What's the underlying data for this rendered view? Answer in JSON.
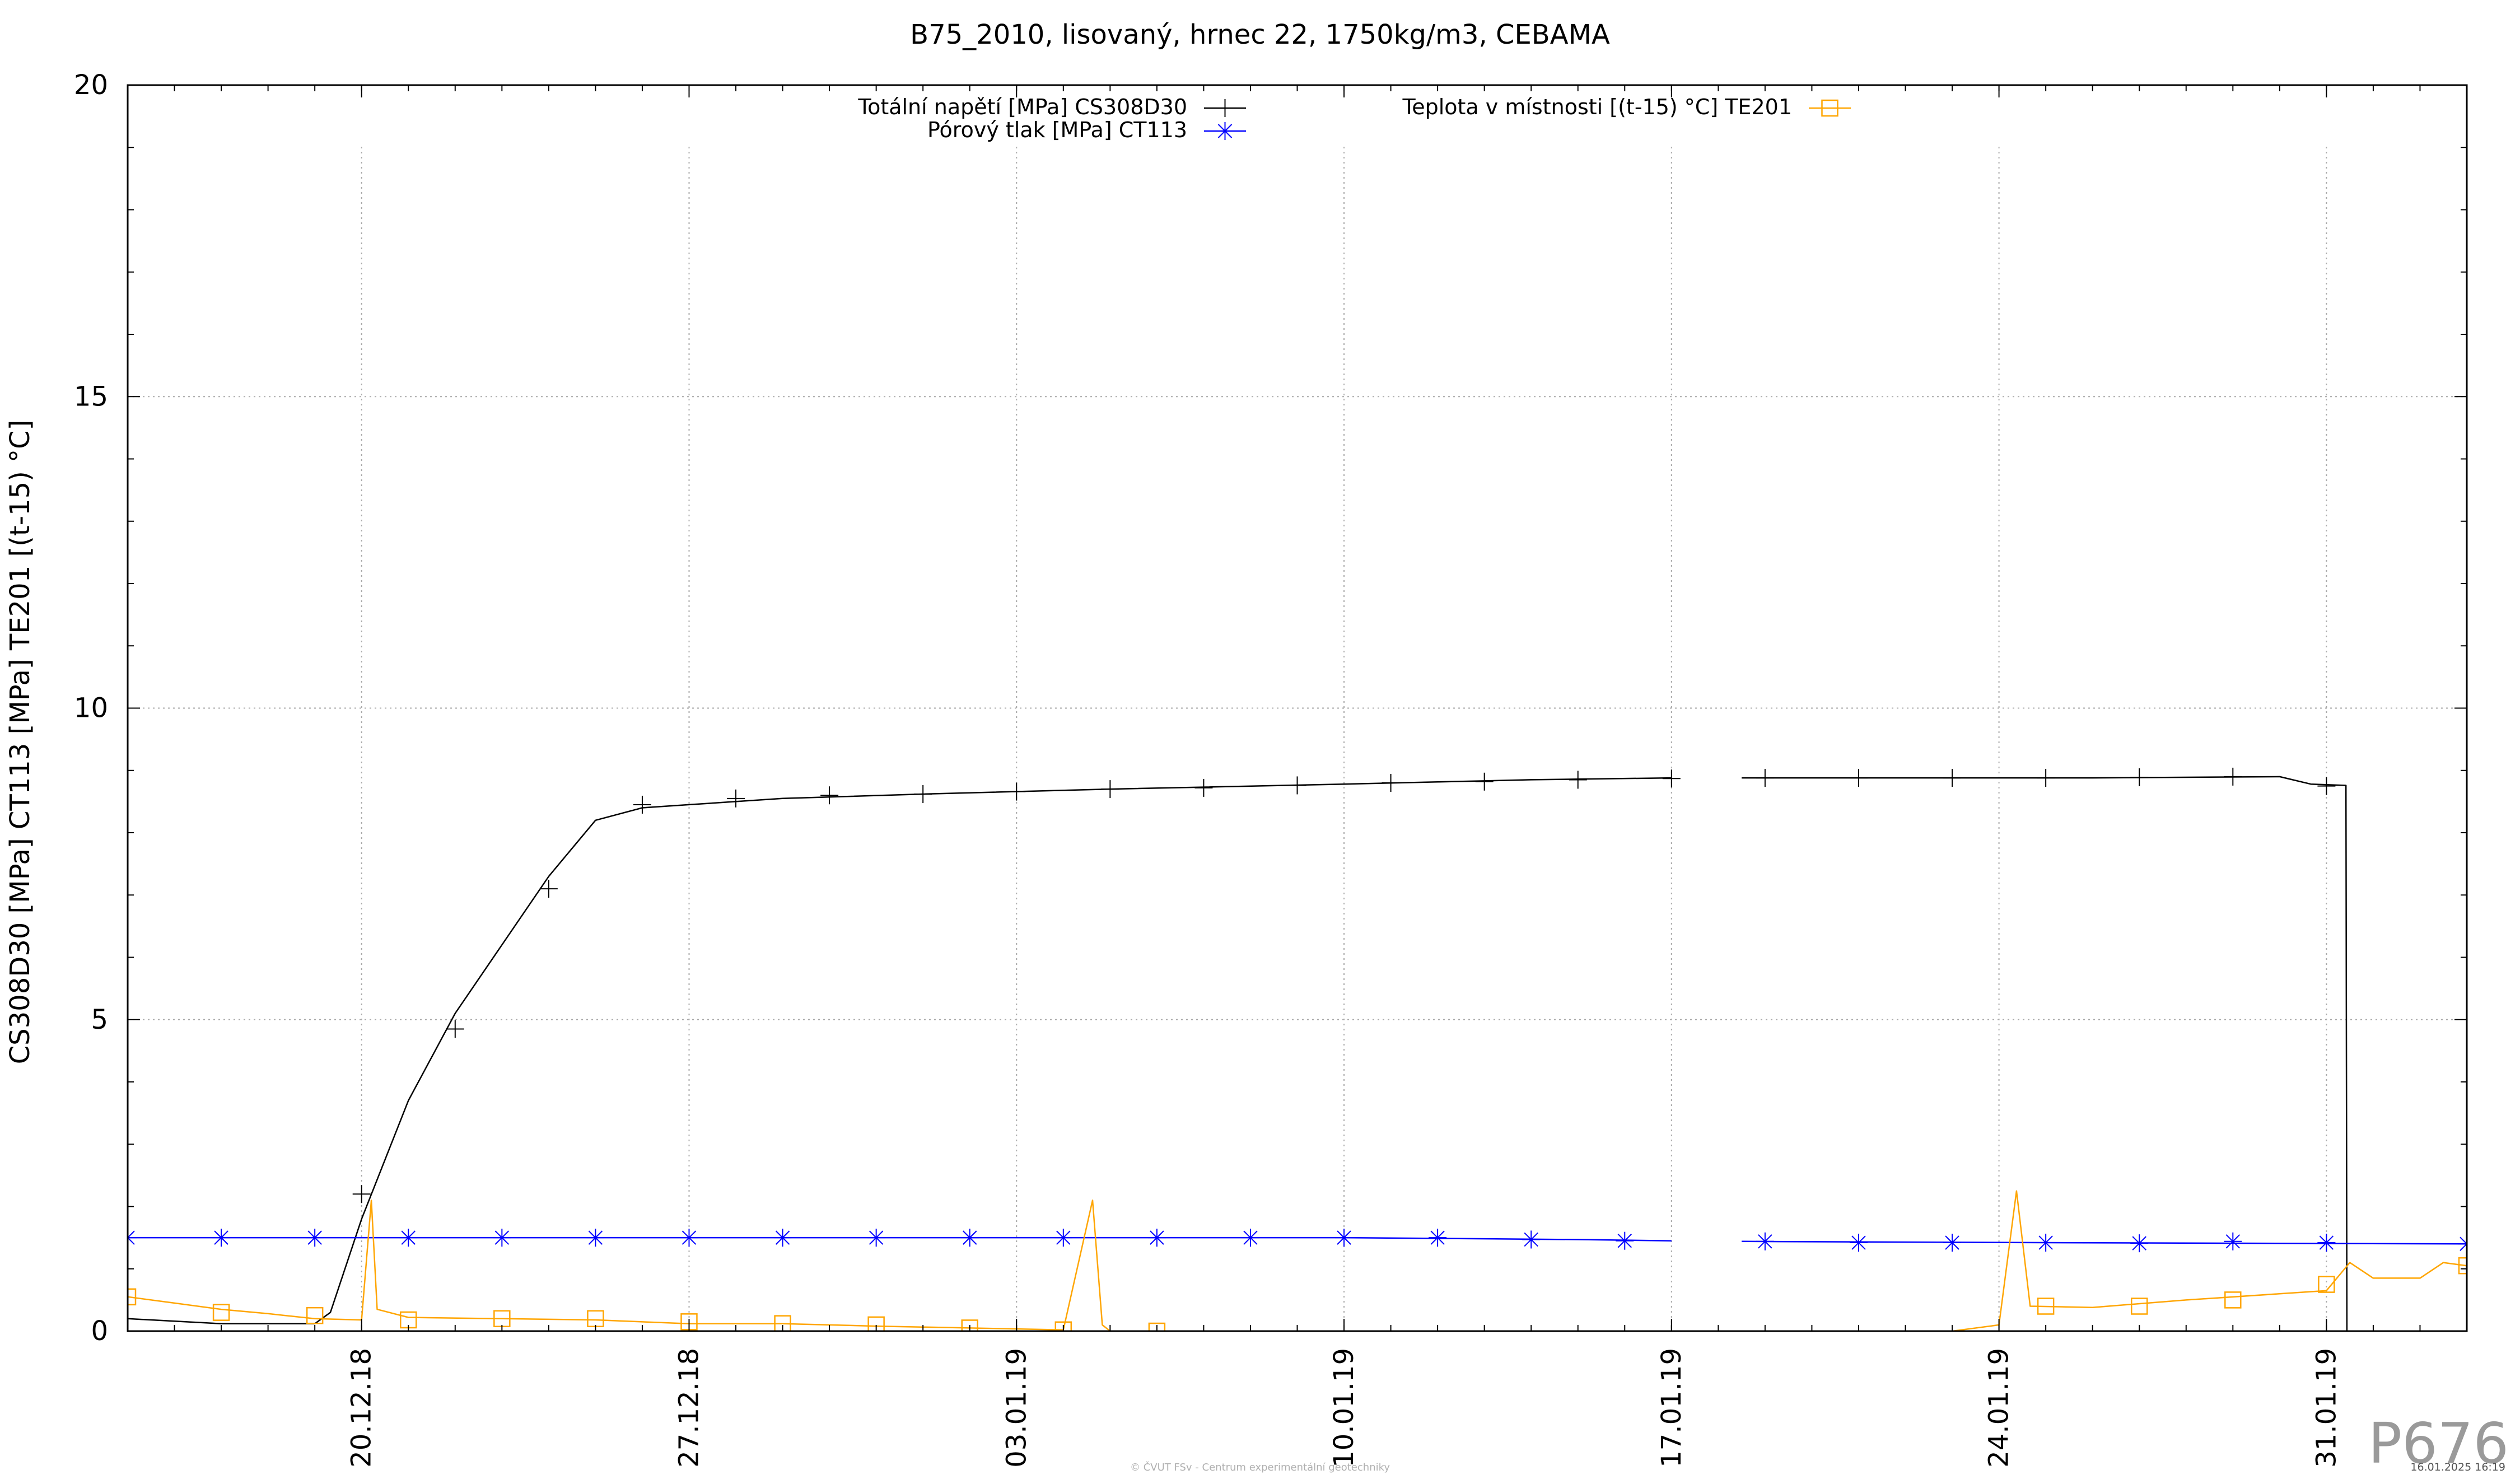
{
  "chart_data": {
    "type": "line",
    "title": "B75_2010, lisovaný, hrnec 22, 1750kg/m3, CEBAMA",
    "ylabel": "CS308D30 [MPa] CT113 [MPa] TE201 [(t-15) °C]",
    "xlabel": "",
    "ylim": [
      0,
      20
    ],
    "yticks": [
      "0",
      "5",
      "10",
      "15",
      "20"
    ],
    "xlim": [
      "2018-12-15",
      "2019-02-03"
    ],
    "xticks": [
      {
        "date": "2018-12-20",
        "label": "20.12.18"
      },
      {
        "date": "2018-12-27",
        "label": "27.12.18"
      },
      {
        "date": "2019-01-03",
        "label": "03.01.19"
      },
      {
        "date": "2019-01-10",
        "label": "10.01.19"
      },
      {
        "date": "2019-01-17",
        "label": "17.01.19"
      },
      {
        "date": "2019-01-24",
        "label": "24.01.19"
      },
      {
        "date": "2019-01-31",
        "label": "31.01.19"
      }
    ],
    "grid": true,
    "legend": "top-center",
    "series": [
      {
        "name": "Totální napětí [MPa] CS308D30",
        "color": "#000000",
        "marker": "plus",
        "points": [
          [
            "2018-12-15",
            0.2
          ],
          [
            "2018-12-17",
            0.12
          ],
          [
            "2018-12-19",
            0.12
          ],
          [
            "2018-12-19 08:00",
            0.3
          ],
          [
            "2018-12-20",
            1.8
          ],
          [
            "2018-12-21",
            3.7
          ],
          [
            "2018-12-22",
            5.1
          ],
          [
            "2018-12-23",
            6.2
          ],
          [
            "2018-12-24",
            7.3
          ],
          [
            "2018-12-25",
            8.2
          ],
          [
            "2018-12-26",
            8.4
          ],
          [
            "2018-12-27",
            8.45
          ],
          [
            "2018-12-29",
            8.55
          ],
          [
            "2019-01-01",
            8.62
          ],
          [
            "2019-01-05",
            8.7
          ],
          [
            "2019-01-10",
            8.78
          ],
          [
            "2019-01-14",
            8.85
          ],
          [
            "2019-01-17",
            8.88
          ],
          [
            "2019-01-17 02:00",
            null
          ],
          [
            "2019-01-18 12:00",
            8.88
          ],
          [
            "2019-01-23",
            8.88
          ],
          [
            "2019-01-26",
            8.88
          ],
          [
            "2019-01-30",
            8.9
          ],
          [
            "2019-01-30 16:00",
            8.78
          ],
          [
            "2019-01-31 10:00",
            8.76
          ],
          [
            "2019-01-31 10:30",
            0
          ]
        ],
        "markers": [
          [
            "2018-12-20",
            2.2
          ],
          [
            "2018-12-22",
            4.85
          ],
          [
            "2018-12-24",
            7.1
          ],
          [
            "2018-12-26",
            8.45
          ],
          [
            "2018-12-28",
            8.55
          ],
          [
            "2018-12-30",
            8.6
          ],
          [
            "2019-01-01",
            8.62
          ],
          [
            "2019-01-03",
            8.66
          ],
          [
            "2019-01-05",
            8.7
          ],
          [
            "2019-01-07",
            8.72
          ],
          [
            "2019-01-09",
            8.76
          ],
          [
            "2019-01-11",
            8.8
          ],
          [
            "2019-01-13",
            8.82
          ],
          [
            "2019-01-15",
            8.85
          ],
          [
            "2019-01-17",
            8.87
          ],
          [
            "2019-01-19",
            8.88
          ],
          [
            "2019-01-21",
            8.88
          ],
          [
            "2019-01-23",
            8.88
          ],
          [
            "2019-01-25",
            8.88
          ],
          [
            "2019-01-27",
            8.89
          ],
          [
            "2019-01-29",
            8.9
          ],
          [
            "2019-01-31",
            8.75
          ]
        ]
      },
      {
        "name": "Pórový tlak [MPa] CT113",
        "color": "#0000ff",
        "marker": "star",
        "points": [
          [
            "2018-12-15",
            1.5
          ],
          [
            "2018-12-22",
            1.5
          ],
          [
            "2019-01-01",
            1.5
          ],
          [
            "2019-01-10",
            1.5
          ],
          [
            "2019-01-15",
            1.47
          ],
          [
            "2019-01-17",
            1.45
          ],
          [
            "2019-01-17 02:00",
            null
          ],
          [
            "2019-01-18 12:00",
            1.44
          ],
          [
            "2019-01-25",
            1.42
          ],
          [
            "2019-02-03",
            1.4
          ]
        ],
        "markers": [
          [
            "2018-12-15",
            1.5
          ],
          [
            "2018-12-17",
            1.5
          ],
          [
            "2018-12-19",
            1.5
          ],
          [
            "2018-12-21",
            1.5
          ],
          [
            "2018-12-23",
            1.5
          ],
          [
            "2018-12-25",
            1.5
          ],
          [
            "2018-12-27",
            1.5
          ],
          [
            "2018-12-29",
            1.5
          ],
          [
            "2018-12-31",
            1.5
          ],
          [
            "2019-01-02",
            1.5
          ],
          [
            "2019-01-04",
            1.5
          ],
          [
            "2019-01-06",
            1.5
          ],
          [
            "2019-01-08",
            1.5
          ],
          [
            "2019-01-10",
            1.5
          ],
          [
            "2019-01-12",
            1.5
          ],
          [
            "2019-01-14",
            1.47
          ],
          [
            "2019-01-16",
            1.45
          ],
          [
            "2019-01-19",
            1.44
          ],
          [
            "2019-01-21",
            1.42
          ],
          [
            "2019-01-23",
            1.42
          ],
          [
            "2019-01-25",
            1.42
          ],
          [
            "2019-01-27",
            1.41
          ],
          [
            "2019-01-29",
            1.44
          ],
          [
            "2019-01-31",
            1.42
          ],
          [
            "2019-02-03",
            1.4
          ]
        ]
      },
      {
        "name": "Teplota v místnosti [(t-15) °C] TE201",
        "color": "#ffa500",
        "marker": "square",
        "points": [
          [
            "2018-12-15",
            0.55
          ],
          [
            "2018-12-16",
            0.45
          ],
          [
            "2018-12-17",
            0.35
          ],
          [
            "2018-12-18",
            0.28
          ],
          [
            "2018-12-19",
            0.2
          ],
          [
            "2018-12-20",
            0.18
          ],
          [
            "2018-12-20 05:00",
            2.1
          ],
          [
            "2018-12-20 08:00",
            0.35
          ],
          [
            "2018-12-21",
            0.22
          ],
          [
            "2018-12-23",
            0.2
          ],
          [
            "2018-12-25",
            0.18
          ],
          [
            "2018-12-27",
            0.12
          ],
          [
            "2018-12-29",
            0.12
          ],
          [
            "2018-12-31",
            0.08
          ],
          [
            "2019-01-02",
            0.05
          ],
          [
            "2019-01-04",
            0.02
          ],
          [
            "2019-01-04 15:00",
            2.1
          ],
          [
            "2019-01-04 20:00",
            0.1
          ],
          [
            "2019-01-05",
            0.0
          ],
          [
            "2019-01-05 01:00",
            null
          ],
          [
            "2019-01-23",
            0.0
          ],
          [
            "2019-01-24",
            0.1
          ],
          [
            "2019-01-24 09:00",
            2.25
          ],
          [
            "2019-01-24 16:00",
            0.4
          ],
          [
            "2019-01-26",
            0.38
          ],
          [
            "2019-01-28",
            0.5
          ],
          [
            "2019-01-30",
            0.6
          ],
          [
            "2019-01-31",
            0.65
          ],
          [
            "2019-01-31 12:00",
            1.1
          ],
          [
            "2019-02-01",
            0.85
          ],
          [
            "2019-02-02",
            0.85
          ],
          [
            "2019-02-02 12:00",
            1.1
          ],
          [
            "2019-02-03",
            1.05
          ]
        ],
        "markers": [
          [
            "2018-12-15",
            0.55
          ],
          [
            "2018-12-17",
            0.3
          ],
          [
            "2018-12-19",
            0.25
          ],
          [
            "2018-12-21",
            0.18
          ],
          [
            "2018-12-23",
            0.2
          ],
          [
            "2018-12-25",
            0.2
          ],
          [
            "2018-12-27",
            0.15
          ],
          [
            "2018-12-29",
            0.12
          ],
          [
            "2018-12-31",
            0.1
          ],
          [
            "2019-01-02",
            0.05
          ],
          [
            "2019-01-04",
            0.02
          ],
          [
            "2019-01-06",
            0.0
          ],
          [
            "2019-01-25",
            0.4
          ],
          [
            "2019-01-27",
            0.4
          ],
          [
            "2019-01-29",
            0.5
          ],
          [
            "2019-01-31",
            0.75
          ],
          [
            "2019-02-03",
            1.05
          ]
        ]
      }
    ]
  },
  "page": {
    "plot_code": "P676",
    "footer": "© ČVUT FSv - Centrum experimentální geotechniky",
    "timestamp": "16.01.2025 16:19"
  }
}
